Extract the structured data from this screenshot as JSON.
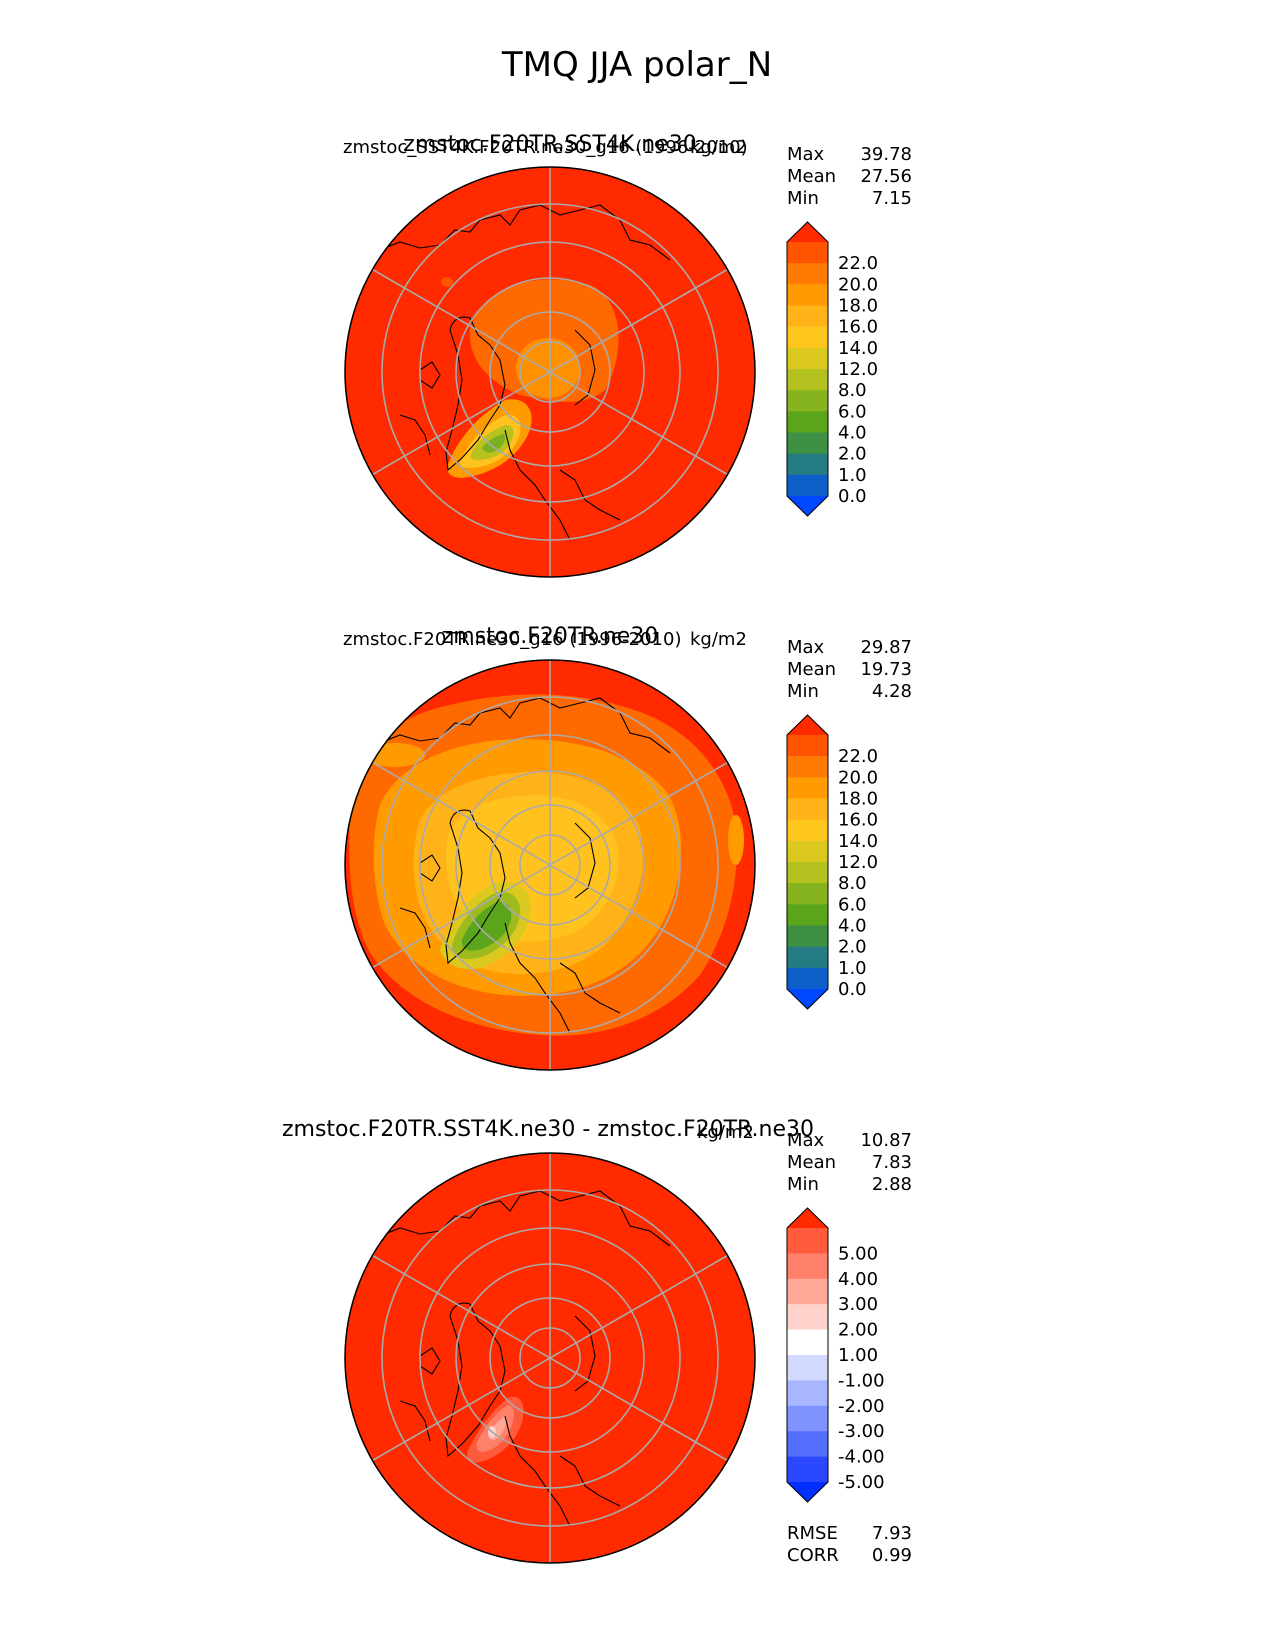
{
  "figure": {
    "title": "TMQ JJA polar_N"
  },
  "chart_data": [
    {
      "type": "heatmap",
      "projection": "north-polar-stereographic",
      "title": "zmstoc.F20TR.SST4K.ne30",
      "left_label": "zmstoc_SST4K.F20TR.ne30_g16 (1996-2010)",
      "units": "kg/m2",
      "stats": [
        {
          "label": "Max",
          "value": "39.78"
        },
        {
          "label": "Mean",
          "value": "27.56"
        },
        {
          "label": "Min",
          "value": "7.15"
        }
      ],
      "colorbar": {
        "extend": "both",
        "tick_labels": [
          "22.0",
          "20.0",
          "18.0",
          "16.0",
          "14.0",
          "12.0",
          "8.0",
          "6.0",
          "4.0",
          "2.0",
          "1.0",
          "0.0"
        ],
        "bands": [
          "#ff2a00",
          "#ff5500",
          "#ff7a00",
          "#ff9b00",
          "#ffb319",
          "#ffc61e",
          "#dcc91f",
          "#b3c21f",
          "#85b41e",
          "#5aa51c",
          "#3e9144",
          "#247b82",
          "#0e5fc8",
          "#0048ff"
        ],
        "colors": {
          "over": "#ff2a00",
          "under": "#0040ff"
        }
      },
      "map": {
        "background_level": "#ff2a00",
        "features": [
          "Greenland dry anomaly",
          "central Arctic moderate values"
        ]
      }
    },
    {
      "type": "heatmap",
      "projection": "north-polar-stereographic",
      "title": "zmstoc.F20TR.ne30",
      "left_label": "zmstoc.F20TR.ne30_g16 (1996-2010)",
      "units": "kg/m2",
      "stats": [
        {
          "label": "Max",
          "value": "29.87"
        },
        {
          "label": "Mean",
          "value": "19.73"
        },
        {
          "label": "Min",
          "value": "4.28"
        }
      ],
      "colorbar": {
        "extend": "both",
        "tick_labels": [
          "22.0",
          "20.0",
          "18.0",
          "16.0",
          "14.0",
          "12.0",
          "8.0",
          "6.0",
          "4.0",
          "2.0",
          "1.0",
          "0.0"
        ],
        "bands": [
          "#ff2a00",
          "#ff5500",
          "#ff7a00",
          "#ff9b00",
          "#ffb319",
          "#ffc61e",
          "#dcc91f",
          "#b3c21f",
          "#85b41e",
          "#5aa51c",
          "#3e9144",
          "#247b82",
          "#0e5fc8",
          "#0048ff"
        ],
        "colors": {
          "over": "#ff2a00",
          "under": "#0040ff"
        }
      },
      "map": {
        "background_level": "#ff2a00",
        "features": [
          "Greenland dry region",
          "yellow central Arctic"
        ]
      }
    },
    {
      "type": "heatmap",
      "projection": "north-polar-stereographic",
      "title": "zmstoc.F20TR.SST4K.ne30 - zmstoc.F20TR.ne30",
      "units": "kg/m2",
      "stats": [
        {
          "label": "Max",
          "value": "10.87"
        },
        {
          "label": "Mean",
          "value": "7.83"
        },
        {
          "label": "Min",
          "value": "2.88"
        }
      ],
      "metrics": [
        {
          "label": "RMSE",
          "value": "7.93"
        },
        {
          "label": "CORR",
          "value": "0.99"
        }
      ],
      "colorbar": {
        "extend": "both",
        "tick_labels": [
          "5.00",
          "4.00",
          "3.00",
          "2.00",
          "1.00",
          "-1.00",
          "-2.00",
          "-3.00",
          "-4.00",
          "-5.00"
        ],
        "bands": [
          "#ff2a00",
          "#ff5a3c",
          "#ff806a",
          "#ffa898",
          "#ffd2cb",
          "#ffffff",
          "#d2d9ff",
          "#a8b6ff",
          "#7f92ff",
          "#556dff",
          "#2a48ff",
          "#0030ff"
        ],
        "colors": {
          "over": "#ff2a00",
          "under": "#0030ff"
        }
      },
      "map": {
        "background_level": "#ff2a00",
        "features": [
          "Greenland light anomaly"
        ]
      }
    }
  ]
}
